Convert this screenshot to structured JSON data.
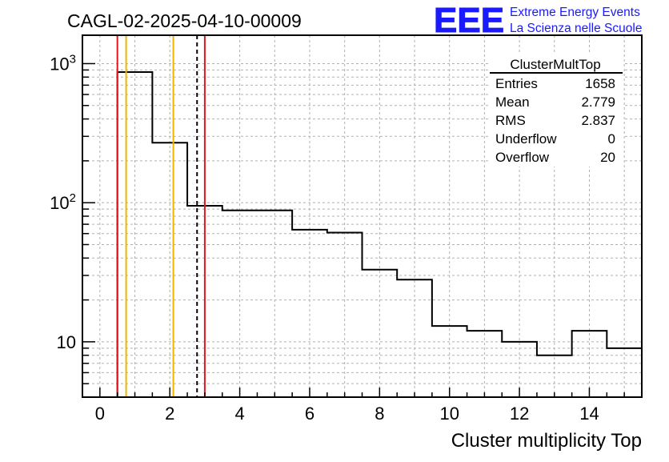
{
  "title": "CAGL-02-2025-04-10-00009",
  "logo": {
    "mark": "EEE",
    "line1": "Extreme Energy Events",
    "line2": "La Scienza nelle Scuole",
    "color": "#1a1aff"
  },
  "stats": {
    "title": "ClusterMultTop",
    "rows": [
      {
        "label": "Entries",
        "value": "1658"
      },
      {
        "label": "Mean",
        "value": "2.779"
      },
      {
        "label": "RMS",
        "value": "2.837"
      },
      {
        "label": "Underflow",
        "value": "0"
      },
      {
        "label": "Overflow",
        "value": "20"
      }
    ]
  },
  "chart_data": {
    "type": "bar",
    "style": "step-histogram",
    "xlabel": "Cluster multiplicity Top",
    "ylabel": "",
    "xlim": [
      -0.5,
      15.5
    ],
    "ylim": [
      4,
      1600
    ],
    "yscale": "log",
    "grid": true,
    "xticks": [
      "0",
      "2",
      "4",
      "6",
      "8",
      "10",
      "12",
      "14"
    ],
    "yticks": [
      "10",
      "10^2",
      "10^3"
    ],
    "bins": [
      {
        "x": 0,
        "value": 0
      },
      {
        "x": 1,
        "value": 870
      },
      {
        "x": 2,
        "value": 270
      },
      {
        "x": 3,
        "value": 95
      },
      {
        "x": 4,
        "value": 88
      },
      {
        "x": 5,
        "value": 88
      },
      {
        "x": 6,
        "value": 64
      },
      {
        "x": 7,
        "value": 61
      },
      {
        "x": 8,
        "value": 33
      },
      {
        "x": 9,
        "value": 28
      },
      {
        "x": 10,
        "value": 13
      },
      {
        "x": 11,
        "value": 12
      },
      {
        "x": 12,
        "value": 10
      },
      {
        "x": 13,
        "value": 8
      },
      {
        "x": 14,
        "value": 12
      },
      {
        "x": 15,
        "value": 9
      }
    ],
    "markers": [
      {
        "x": 0.5,
        "color": "#e8121b",
        "style": "solid"
      },
      {
        "x": 0.75,
        "color": "#f0b400",
        "style": "solid"
      },
      {
        "x": 2.1,
        "color": "#f0b400",
        "style": "solid"
      },
      {
        "x": 2.779,
        "color": "#000000",
        "style": "dashed"
      },
      {
        "x": 3.0,
        "color": "#e8121b",
        "style": "solid"
      }
    ]
  }
}
